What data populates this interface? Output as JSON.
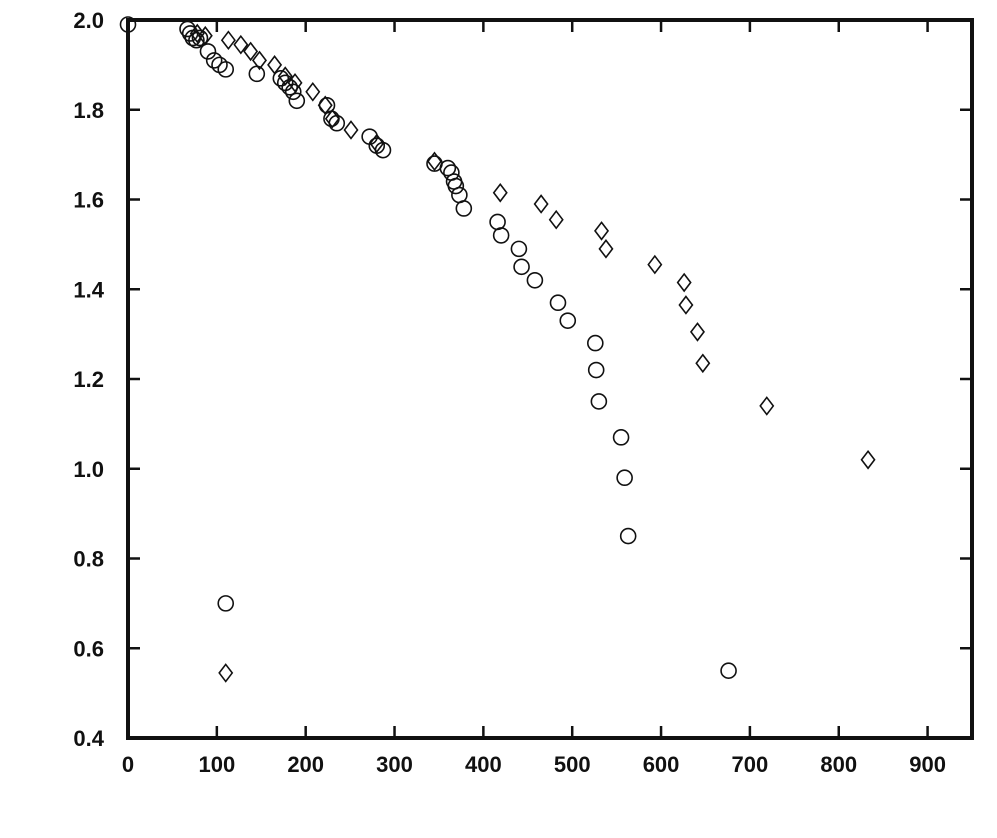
{
  "chart_data": {
    "type": "scatter",
    "title": "",
    "xlabel": "",
    "ylabel": "",
    "xlim": [
      0,
      950
    ],
    "ylim": [
      0.4,
      2.0
    ],
    "x_ticks": [
      0,
      100,
      200,
      300,
      400,
      500,
      600,
      700,
      800,
      900
    ],
    "x_tick_labels": [
      "0",
      "100",
      "200",
      "300",
      "400",
      "500",
      "600",
      "700",
      "800",
      "900"
    ],
    "y_ticks": [
      0.4,
      0.6,
      0.8,
      1.0,
      1.2,
      1.4,
      1.6,
      1.8,
      2.0
    ],
    "y_tick_labels": [
      "0.4",
      "0.6",
      "0.8",
      "1.0",
      "1.2",
      "1.4",
      "1.6",
      "1.8",
      "2.0"
    ],
    "grid": false,
    "legend": "none",
    "colors": {
      "ink": "#111111",
      "background": "#ffffff"
    },
    "series": [
      {
        "marker": "circle",
        "points": [
          [
            0,
            1.99
          ],
          [
            67,
            1.98
          ],
          [
            70,
            1.97
          ],
          [
            73,
            1.96
          ],
          [
            77,
            1.955
          ],
          [
            81,
            1.96
          ],
          [
            90,
            1.93
          ],
          [
            97,
            1.91
          ],
          [
            103,
            1.9
          ],
          [
            110,
            1.89
          ],
          [
            145,
            1.88
          ],
          [
            172,
            1.87
          ],
          [
            177,
            1.86
          ],
          [
            182,
            1.85
          ],
          [
            186,
            1.84
          ],
          [
            190,
            1.82
          ],
          [
            224,
            1.81
          ],
          [
            229,
            1.78
          ],
          [
            235,
            1.77
          ],
          [
            272,
            1.74
          ],
          [
            280,
            1.72
          ],
          [
            287,
            1.71
          ],
          [
            345,
            1.68
          ],
          [
            360,
            1.67
          ],
          [
            364,
            1.66
          ],
          [
            367,
            1.64
          ],
          [
            369,
            1.63
          ],
          [
            373,
            1.61
          ],
          [
            378,
            1.58
          ],
          [
            416,
            1.55
          ],
          [
            420,
            1.52
          ],
          [
            440,
            1.49
          ],
          [
            443,
            1.45
          ],
          [
            458,
            1.42
          ],
          [
            484,
            1.37
          ],
          [
            495,
            1.33
          ],
          [
            526,
            1.28
          ],
          [
            527,
            1.22
          ],
          [
            530,
            1.15
          ],
          [
            555,
            1.07
          ],
          [
            559,
            0.98
          ],
          [
            563,
            0.85
          ],
          [
            110,
            0.7
          ],
          [
            676,
            0.55
          ]
        ]
      },
      {
        "marker": "diamond",
        "points": [
          [
            78,
            1.97
          ],
          [
            87,
            1.965
          ],
          [
            113,
            1.955
          ],
          [
            127,
            1.945
          ],
          [
            138,
            1.93
          ],
          [
            148,
            1.91
          ],
          [
            165,
            1.9
          ],
          [
            177,
            1.875
          ],
          [
            188,
            1.86
          ],
          [
            208,
            1.84
          ],
          [
            222,
            1.81
          ],
          [
            230,
            1.78
          ],
          [
            251,
            1.755
          ],
          [
            280,
            1.725
          ],
          [
            345,
            1.685
          ],
          [
            419,
            1.615
          ],
          [
            465,
            1.59
          ],
          [
            482,
            1.555
          ],
          [
            533,
            1.53
          ],
          [
            538,
            1.49
          ],
          [
            593,
            1.455
          ],
          [
            626,
            1.415
          ],
          [
            628,
            1.365
          ],
          [
            641,
            1.305
          ],
          [
            647,
            1.235
          ],
          [
            719,
            1.14
          ],
          [
            833,
            1.02
          ],
          [
            110,
            0.545
          ]
        ]
      }
    ]
  }
}
